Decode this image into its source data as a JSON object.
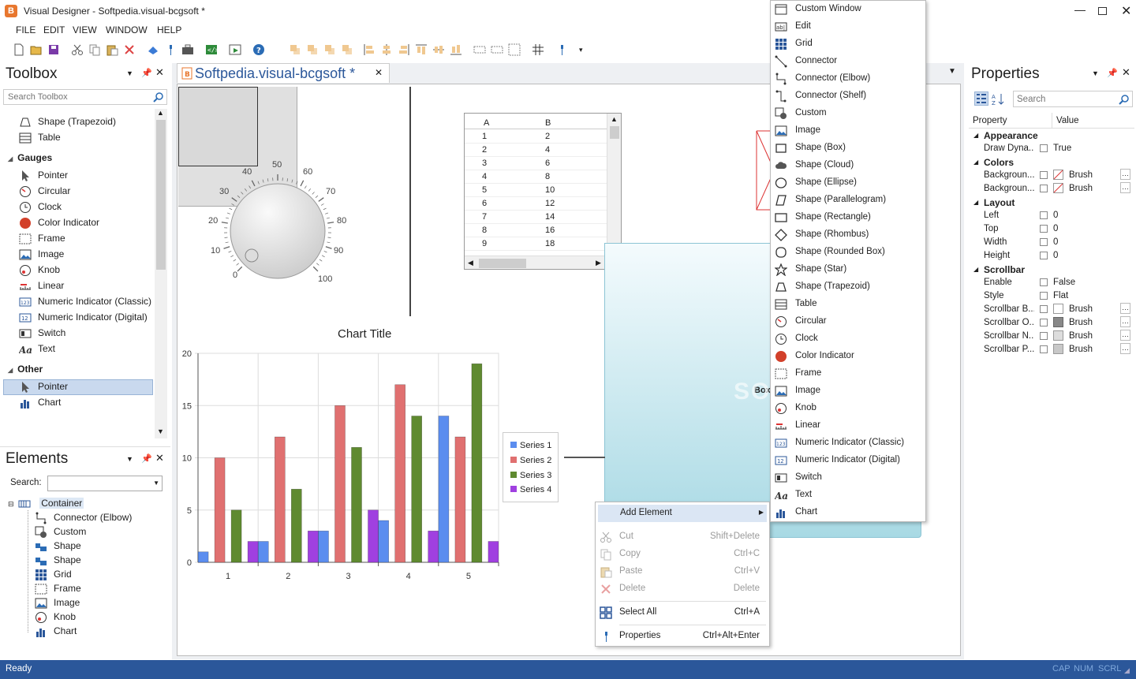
{
  "window": {
    "title": "Visual Designer - Softpedia.visual-bcgsoft *"
  },
  "menu": [
    "FILE",
    "EDIT",
    "VIEW",
    "WINDOW",
    "HELP"
  ],
  "toolbox": {
    "title": "Toolbox",
    "search_placeholder": "Search Toolbox",
    "items_top": [
      "Shape (Trapezoid)",
      "Table"
    ],
    "gauges_header": "Gauges",
    "gauges": [
      "Pointer",
      "Circular",
      "Clock",
      "Color Indicator",
      "Frame",
      "Image",
      "Knob",
      "Linear",
      "Numeric Indicator (Classic)",
      "Numeric Indicator (Digital)",
      "Switch",
      "Text"
    ],
    "other_header": "Other",
    "other": [
      "Pointer",
      "Chart"
    ]
  },
  "elements": {
    "title": "Elements",
    "search_label": "Search:",
    "root": "Container",
    "children": [
      "Connector (Elbow)",
      "Custom",
      "Shape",
      "Shape",
      "Grid",
      "Frame",
      "Image",
      "Knob",
      "Chart"
    ]
  },
  "document": {
    "tab": "Softpedia.visual-bcgsoft *"
  },
  "knob": {
    "labels": [
      "0",
      "10",
      "20",
      "30",
      "40",
      "50",
      "60",
      "70",
      "80",
      "90",
      "100"
    ]
  },
  "grid": {
    "headers": [
      "A",
      "B"
    ],
    "rows": [
      [
        "1",
        "2"
      ],
      [
        "2",
        "4"
      ],
      [
        "3",
        "6"
      ],
      [
        "4",
        "8"
      ],
      [
        "5",
        "10"
      ],
      [
        "6",
        "12"
      ],
      [
        "7",
        "14"
      ],
      [
        "8",
        "16"
      ],
      [
        "9",
        "18"
      ]
    ]
  },
  "chart_data": {
    "type": "bar",
    "title": "Chart Title",
    "categories": [
      "1",
      "2",
      "3",
      "4",
      "5"
    ],
    "ylim": [
      0,
      20
    ],
    "yticks": [
      "0",
      "5",
      "10",
      "15",
      "20"
    ],
    "series": [
      {
        "name": "Series 1",
        "values": [
          1,
          2,
          3,
          4,
          14
        ],
        "color": "#5b8def"
      },
      {
        "name": "Series 2",
        "values": [
          10,
          12,
          15,
          17,
          12
        ],
        "color": "#e07070"
      },
      {
        "name": "Series 3",
        "values": [
          5,
          7,
          11,
          14,
          19
        ],
        "color": "#5f8a30"
      },
      {
        "name": "Series 4",
        "values": [
          2,
          3,
          5,
          3,
          2
        ],
        "color": "#a040e0"
      }
    ],
    "legend": "right"
  },
  "canvas": {
    "box_label": "Box",
    "watermark": "SOFTPEDIA"
  },
  "add_menu": [
    {
      "label": "Custom Window",
      "icon": "window-icon"
    },
    {
      "label": "Edit",
      "icon": "edit-icon"
    },
    {
      "label": "Grid",
      "icon": "grid-icon"
    },
    {
      "label": "Connector",
      "icon": "connector-icon"
    },
    {
      "label": "Connector (Elbow)",
      "icon": "connector-elbow-icon"
    },
    {
      "label": "Connector (Shelf)",
      "icon": "connector-shelf-icon"
    },
    {
      "label": "Custom",
      "icon": "custom-icon"
    },
    {
      "label": "Image",
      "icon": "image-icon"
    },
    {
      "label": "Shape (Box)",
      "icon": "box-icon"
    },
    {
      "label": "Shape (Cloud)",
      "icon": "cloud-icon"
    },
    {
      "label": "Shape (Ellipse)",
      "icon": "ellipse-icon"
    },
    {
      "label": "Shape (Parallelogram)",
      "icon": "parallelogram-icon"
    },
    {
      "label": "Shape (Rectangle)",
      "icon": "rectangle-icon"
    },
    {
      "label": "Shape (Rhombus)",
      "icon": "rhombus-icon"
    },
    {
      "label": "Shape (Rounded Box)",
      "icon": "rounded-box-icon"
    },
    {
      "label": "Shape (Star)",
      "icon": "star-icon"
    },
    {
      "label": "Shape (Trapezoid)",
      "icon": "trapezoid-icon"
    },
    {
      "label": "Table",
      "icon": "table-icon"
    },
    {
      "label": "Circular",
      "icon": "circular-gauge-icon"
    },
    {
      "label": "Clock",
      "icon": "clock-icon"
    },
    {
      "label": "Color Indicator",
      "icon": "color-indicator-icon"
    },
    {
      "label": "Frame",
      "icon": "frame-icon"
    },
    {
      "label": "Image",
      "icon": "image-icon"
    },
    {
      "label": "Knob",
      "icon": "knob-icon"
    },
    {
      "label": "Linear",
      "icon": "linear-icon"
    },
    {
      "label": "Numeric Indicator (Classic)",
      "icon": "numeric-classic-icon"
    },
    {
      "label": "Numeric Indicator (Digital)",
      "icon": "numeric-digital-icon"
    },
    {
      "label": "Switch",
      "icon": "switch-icon"
    },
    {
      "label": "Text",
      "icon": "text-icon"
    },
    {
      "label": "Chart",
      "icon": "chart-icon"
    }
  ],
  "context_menu": {
    "add_element": "Add Element",
    "cut": "Cut",
    "cut_sc": "Shift+Delete",
    "copy": "Copy",
    "copy_sc": "Ctrl+C",
    "paste": "Paste",
    "paste_sc": "Ctrl+V",
    "delete": "Delete",
    "delete_sc": "Delete",
    "select_all": "Select All",
    "select_all_sc": "Ctrl+A",
    "properties": "Properties",
    "properties_sc": "Ctrl+Alt+Enter"
  },
  "properties": {
    "title": "Properties",
    "search_placeholder": "Search",
    "col_property": "Property",
    "col_value": "Value",
    "cat_appearance": "Appearance",
    "draw_dyna": {
      "name": "Draw Dyna...",
      "value": "True"
    },
    "cat_colors": "Colors",
    "bg1": {
      "name": "Backgroun...",
      "value": "Brush"
    },
    "bg2": {
      "name": "Backgroun...",
      "value": "Brush"
    },
    "cat_layout": "Layout",
    "left": {
      "name": "Left",
      "value": "0"
    },
    "top": {
      "name": "Top",
      "value": "0"
    },
    "width": {
      "name": "Width",
      "value": "0"
    },
    "height": {
      "name": "Height",
      "value": "0"
    },
    "cat_scrollbar": "Scrollbar",
    "enable": {
      "name": "Enable",
      "value": "False"
    },
    "style": {
      "name": "Style",
      "value": "Flat"
    },
    "sb_b": {
      "name": "Scrollbar B...",
      "value": "Brush"
    },
    "sb_o": {
      "name": "Scrollbar O...",
      "value": "Brush"
    },
    "sb_n": {
      "name": "Scrollbar N...",
      "value": "Brush"
    },
    "sb_p": {
      "name": "Scrollbar P...",
      "value": "Brush"
    }
  },
  "statusbar": {
    "text": "Ready",
    "cap": "CAP",
    "num": "NUM",
    "scrl": "SCRL"
  },
  "colors": {
    "accent": "#2b579a",
    "selection": "#c9d9ee",
    "status_bg": "#2b579a"
  }
}
